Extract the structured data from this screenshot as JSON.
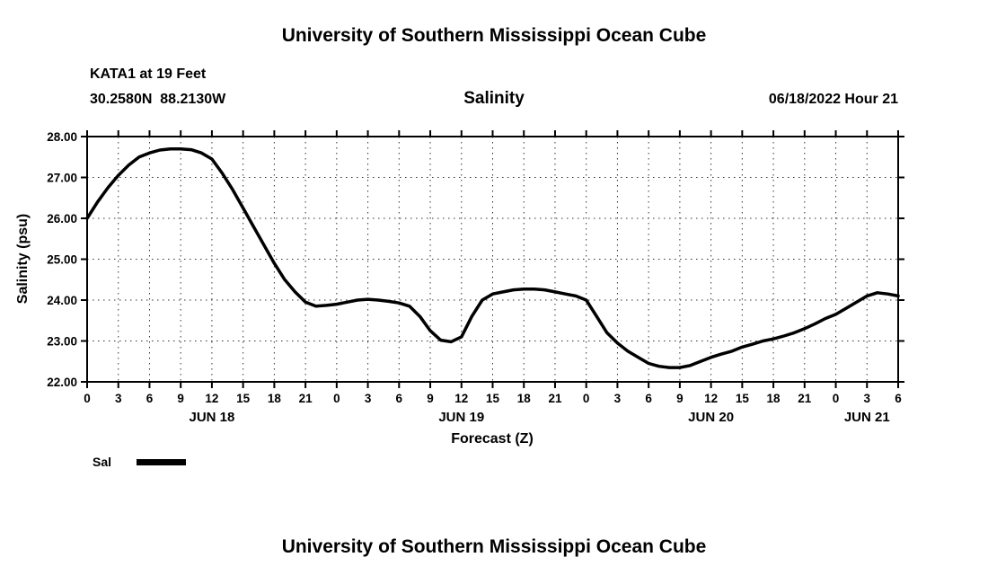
{
  "page": {
    "title_top": "University of Southern Mississippi Ocean Cube",
    "title_bottom": "University of Southern Mississippi Ocean Cube"
  },
  "header": {
    "station": "KATA1 at 19 Feet",
    "coordinates": "30.2580N  88.2130W",
    "plot_title": "Salinity",
    "datetime": "06/18/2022 Hour 21"
  },
  "legend": {
    "label": "Sal",
    "color": "#000000"
  },
  "chart_data": {
    "type": "line",
    "title": "Salinity",
    "xlabel": "Forecast (Z)",
    "ylabel": "Salinity (psu)",
    "ylim": [
      22.0,
      28.0
    ],
    "yticks": [
      22,
      23,
      24,
      25,
      26,
      27,
      28
    ],
    "ytick_labels": [
      "22.00",
      "23.00",
      "24.00",
      "25.00",
      "26.00",
      "27.00",
      "28.00"
    ],
    "xlim_hours": [
      0,
      78
    ],
    "xtick_interval_hours": 3,
    "xtick_labels": [
      "0",
      "3",
      "6",
      "9",
      "12",
      "15",
      "18",
      "21",
      "0",
      "3",
      "6",
      "9",
      "12",
      "15",
      "18",
      "21",
      "0",
      "3",
      "6",
      "9",
      "12",
      "15",
      "18",
      "21",
      "0",
      "3",
      "6"
    ],
    "day_labels": [
      {
        "label": "JUN 18",
        "center_hour": 12
      },
      {
        "label": "JUN 19",
        "center_hour": 36
      },
      {
        "label": "JUN 20",
        "center_hour": 60
      },
      {
        "label": "JUN 21",
        "center_hour": 75
      }
    ],
    "grid": true,
    "legend_position": "bottom-left",
    "line_color": "#000000",
    "series": [
      {
        "name": "Sal",
        "color": "#000000",
        "x": [
          0,
          1,
          2,
          3,
          4,
          5,
          6,
          7,
          8,
          9,
          10,
          11,
          12,
          13,
          14,
          15,
          16,
          17,
          18,
          19,
          20,
          21,
          22,
          23,
          24,
          25,
          26,
          27,
          28,
          29,
          30,
          31,
          32,
          33,
          34,
          35,
          36,
          37,
          38,
          39,
          40,
          41,
          42,
          43,
          44,
          45,
          46,
          47,
          48,
          49,
          50,
          51,
          52,
          53,
          54,
          55,
          56,
          57,
          58,
          59,
          60,
          61,
          62,
          63,
          64,
          65,
          66,
          67,
          68,
          69,
          70,
          71,
          72,
          73,
          74,
          75,
          76,
          77,
          78
        ],
        "y": [
          26.0,
          26.4,
          26.75,
          27.05,
          27.3,
          27.5,
          27.6,
          27.67,
          27.7,
          27.7,
          27.68,
          27.6,
          27.45,
          27.1,
          26.7,
          26.25,
          25.8,
          25.35,
          24.9,
          24.5,
          24.2,
          23.95,
          23.85,
          23.87,
          23.9,
          23.95,
          24.0,
          24.02,
          24.0,
          23.97,
          23.93,
          23.85,
          23.6,
          23.25,
          23.02,
          22.98,
          23.1,
          23.6,
          24.0,
          24.15,
          24.2,
          24.25,
          24.27,
          24.27,
          24.25,
          24.2,
          24.15,
          24.1,
          24.0,
          23.6,
          23.2,
          22.95,
          22.75,
          22.6,
          22.45,
          22.38,
          22.35,
          22.35,
          22.4,
          22.5,
          22.6,
          22.68,
          22.75,
          22.85,
          22.92,
          23.0,
          23.05,
          23.12,
          23.2,
          23.3,
          23.42,
          23.55,
          23.65,
          23.8,
          23.95,
          24.1,
          24.18,
          24.15,
          24.1
        ]
      }
    ]
  }
}
